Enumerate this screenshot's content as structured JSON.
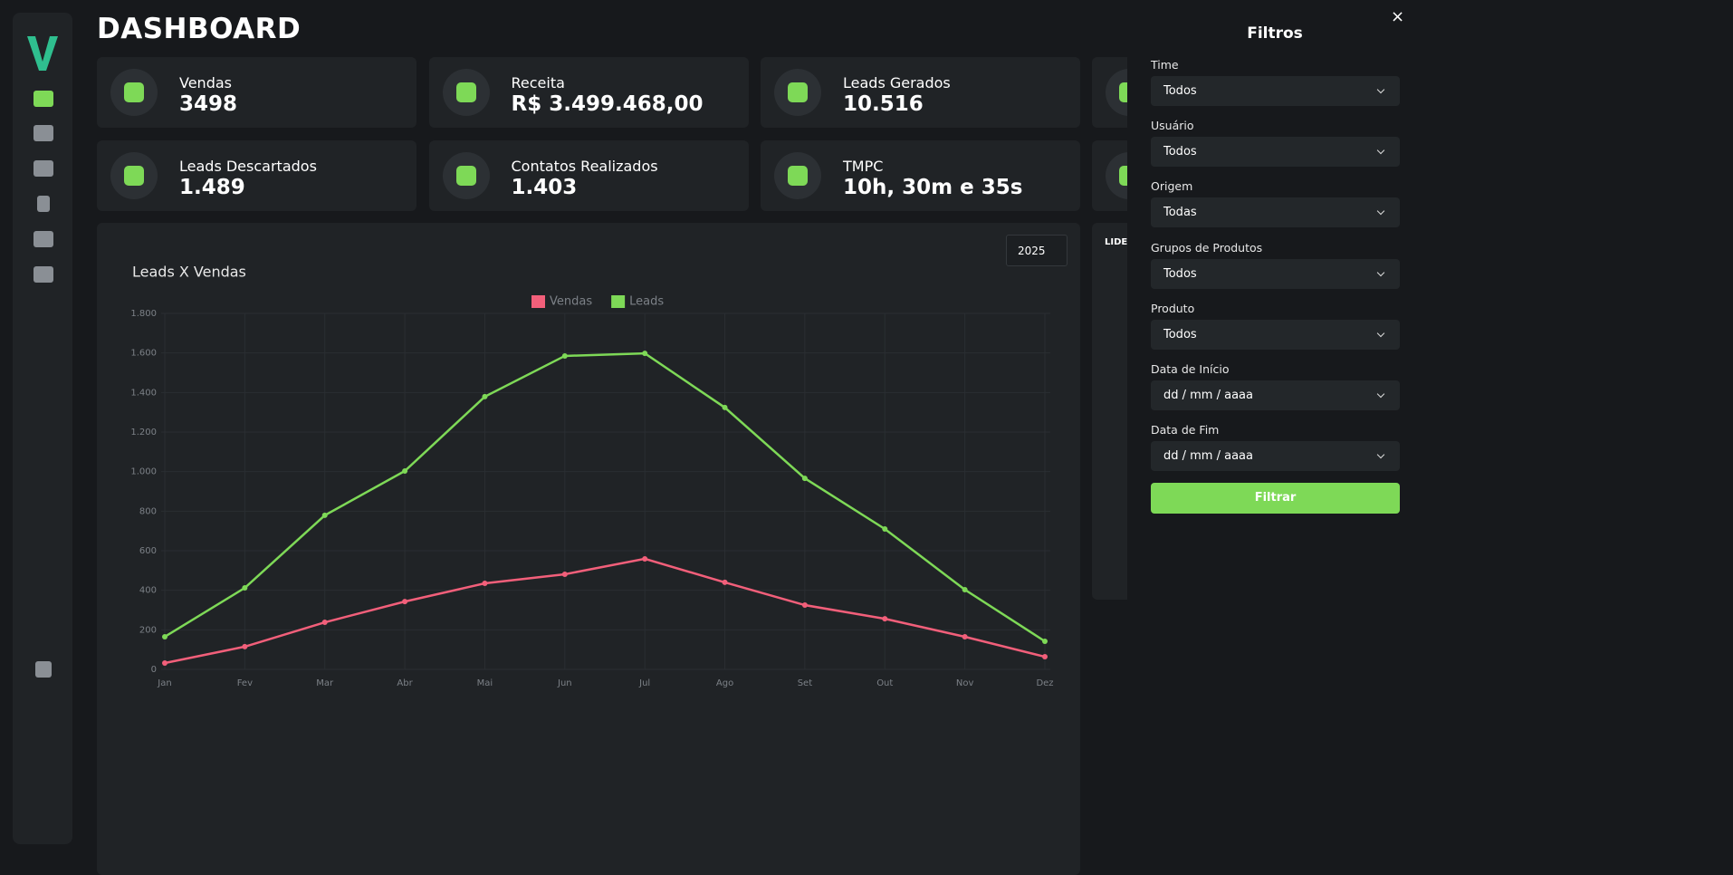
{
  "header": {
    "title": "DASHBOARD"
  },
  "cards": [
    {
      "label": "Vendas",
      "value": "3498"
    },
    {
      "label": "Receita",
      "value": "R$ 3.499.468,00"
    },
    {
      "label": "Leads Gerados",
      "value": "10.516"
    },
    {
      "label": "Leads Descartados",
      "value": "1.489"
    },
    {
      "label": "Contatos Realizados",
      "value": "1.403"
    },
    {
      "label": "TMPC",
      "value": "10h, 30m e 35s"
    }
  ],
  "year_select": "2025",
  "ranking_title": "LIDER",
  "chart_data": {
    "type": "line",
    "title": "Leads X Vendas",
    "categories": [
      "Jan",
      "Fev",
      "Mar",
      "Abr",
      "Mai",
      "Jun",
      "Jul",
      "Ago",
      "Set",
      "Out",
      "Nov",
      "Dez"
    ],
    "series": [
      {
        "name": "Vendas",
        "color": "#f25f7a",
        "values": [
          32,
          115,
          238,
          343,
          435,
          481,
          559,
          440,
          325,
          256,
          165,
          64
        ]
      },
      {
        "name": "Leads",
        "color": "#7ed957",
        "values": [
          165,
          412,
          779,
          1003,
          1379,
          1585,
          1598,
          1324,
          966,
          710,
          403,
          142
        ]
      }
    ],
    "ylim": [
      0,
      1800
    ],
    "yticks": [
      0,
      200,
      400,
      600,
      800,
      {
        "value": 1000,
        "label": "1.000"
      },
      {
        "value": 1200,
        "label": "1.200"
      },
      {
        "value": 1400,
        "label": "1.400"
      },
      {
        "value": 1600,
        "label": "1.600"
      },
      {
        "value": 1800,
        "label": "1.800"
      }
    ],
    "grid": true,
    "legend": "top"
  },
  "filters": {
    "title": "Filtros",
    "close": "×",
    "fields": [
      {
        "label": "Time",
        "value": "Todos"
      },
      {
        "label": "Usuário",
        "value": "Todos"
      },
      {
        "label": "Origem",
        "value": "Todas"
      },
      {
        "label": "Grupos de Produtos",
        "value": "Todos"
      },
      {
        "label": "Produto",
        "value": "Todos"
      },
      {
        "label": "Data de Início",
        "value": "dd / mm / aaaa"
      },
      {
        "label": "Data de Fim",
        "value": "dd / mm / aaaa"
      }
    ],
    "button": "Filtrar"
  }
}
